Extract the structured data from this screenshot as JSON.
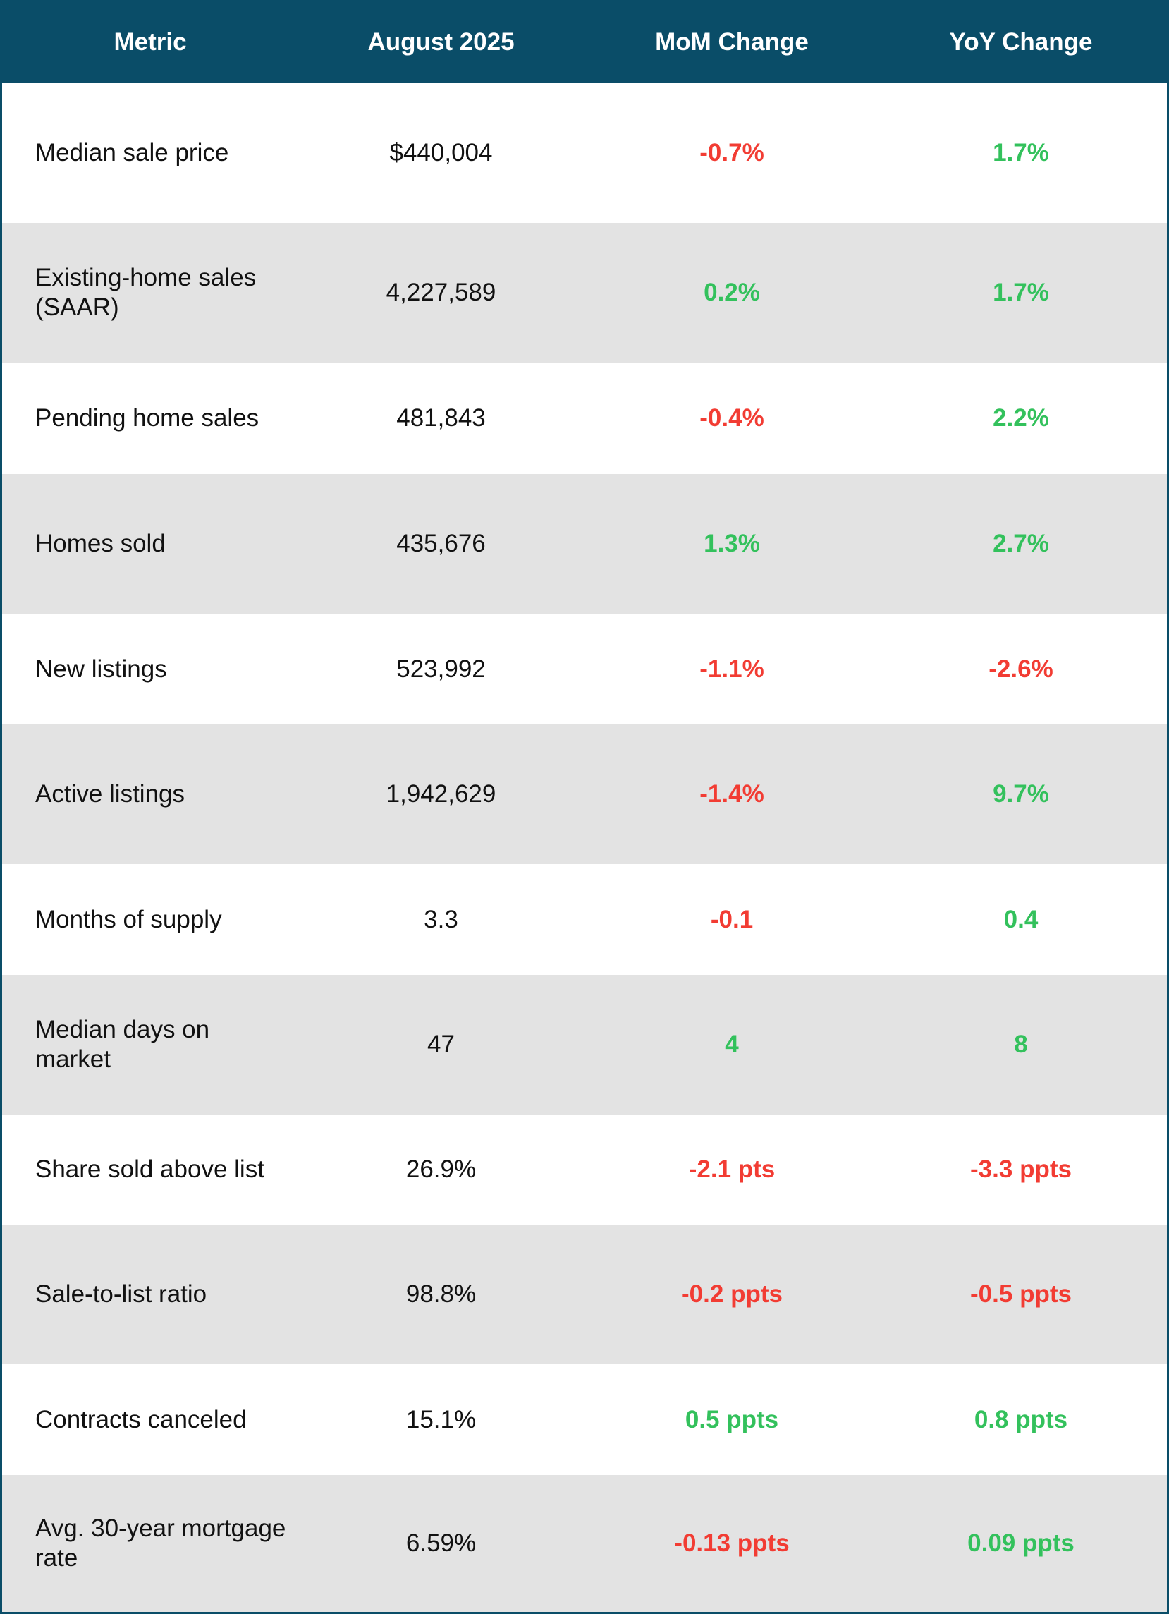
{
  "table": {
    "headers": [
      "Metric",
      "August 2025",
      "MoM Change",
      "YoY Change"
    ],
    "colors": {
      "header_bg": "#0a4d68",
      "row_alt_bg": "#e3e3e3",
      "negative": "#f23c33",
      "positive": "#33c15c"
    },
    "rows": [
      {
        "metric": "Median sale price",
        "value": "$440,004",
        "mom": "-0.7%",
        "yoy": "1.7%"
      },
      {
        "metric": "Existing-home sales (SAAR)",
        "value": "4,227,589",
        "mom": "0.2%",
        "yoy": "1.7%"
      },
      {
        "metric": "Pending home sales",
        "value": "481,843",
        "mom": "-0.4%",
        "yoy": "2.2%"
      },
      {
        "metric": "Homes sold",
        "value": "435,676",
        "mom": "1.3%",
        "yoy": "2.7%"
      },
      {
        "metric": "New listings",
        "value": "523,992",
        "mom": "-1.1%",
        "yoy": "-2.6%"
      },
      {
        "metric": "Active listings",
        "value": "1,942,629",
        "mom": "-1.4%",
        "yoy": "9.7%"
      },
      {
        "metric": "Months of supply",
        "value": "3.3",
        "mom": "-0.1",
        "yoy": "0.4"
      },
      {
        "metric": "Median days on market",
        "value": "47",
        "mom": "4",
        "yoy": "8"
      },
      {
        "metric": "Share sold above list",
        "value": "26.9%",
        "mom": "-2.1 pts",
        "yoy": "-3.3 ppts"
      },
      {
        "metric": "Sale-to-list ratio",
        "value": "98.8%",
        "mom": "-0.2 ppts",
        "yoy": "-0.5 ppts"
      },
      {
        "metric": "Contracts canceled",
        "value": "15.1%",
        "mom": "0.5 ppts",
        "yoy": "0.8 ppts"
      },
      {
        "metric": "Avg. 30-year mortgage rate",
        "value": "6.59%",
        "mom": "-0.13 ppts",
        "yoy": "0.09 ppts"
      }
    ]
  }
}
